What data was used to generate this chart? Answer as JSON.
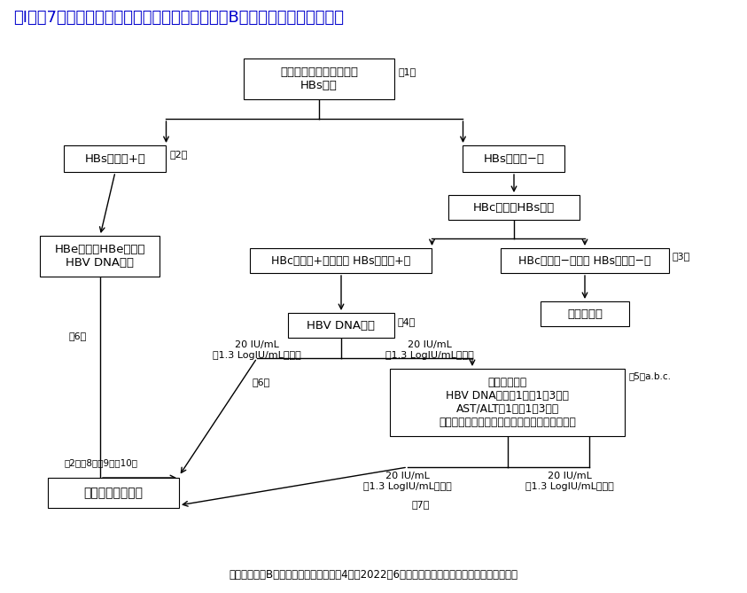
{
  "title": "図Ⅰ－（7）　免疫抑制・化学療法により発症するB型肝炎対策ガイドライン",
  "title_color": "#0000cc",
  "footer": "日本肝臓学会B型肝炎ガイドライン（第4版　2022年6月）　日本肝臓学会ホームページより引用",
  "bg_color": "#ffffff",
  "text_color": "#000000",
  "box_screen": "スクリーニング（全例）\nHBs抗原",
  "box_hbspos": "HBs抗原（+）",
  "box_hbsneg": "HBs抗原（−）",
  "box_hbc_hbs": "HBc抗体、HBs抗体",
  "box_hbe": "HBe抗原、HBe抗体、\nHBV DNA定量",
  "box_hbcpos": "HBc抗体（+）または HBs抗体（+）",
  "box_hbcneg": "HBc抗体（−）かつ HBs抗体（−）",
  "box_tujo": "通常の対応",
  "box_dna": "HBV DNA定量",
  "box_monitor": "モニタリング\nHBV DNA定量　1回／1～3か月\nAST/ALT　1回／1～3か月\n（治療内容を考慮して間隔・期間を検討する）",
  "box_kakusan": "核酸アナログ投与",
  "note1": "注1）",
  "note2": "注2）",
  "note3": "注3）",
  "note4": "注4）",
  "note5": "注5）a.b.c.",
  "note6": "注6）",
  "note6b": "注6）",
  "note7": "注7）",
  "note2_long": "注2）、8）、9）【10）",
  "label_ijo": "20 IU/mL\n（1.3 LogIU/mL）以上",
  "label_miman": "20 IU/mL\n（1.3 LogIU/mL）未満",
  "label_ijo2": "20 IU/mL\n（1.3 LogIU/mL）以上",
  "label_miman2": "20 IU/mL\n（1.3 LogIU/mL）未満"
}
